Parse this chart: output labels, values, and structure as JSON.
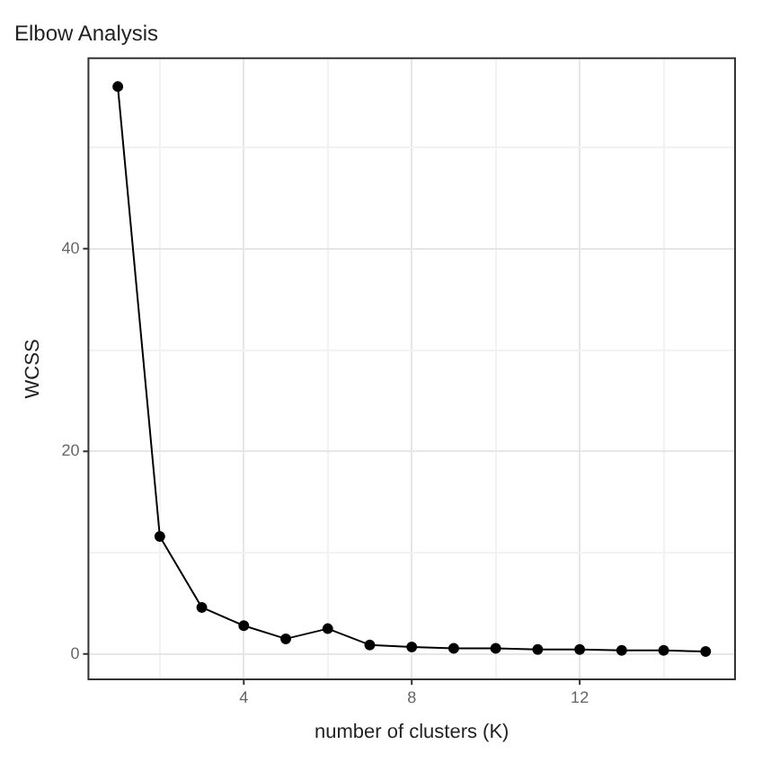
{
  "chart_data": {
    "type": "line",
    "title": "Elbow Analysis",
    "xlabel": "number of clusters (K)",
    "ylabel": "WCSS",
    "x": [
      1,
      2,
      3,
      4,
      5,
      6,
      7,
      8,
      9,
      10,
      11,
      12,
      13,
      14,
      15
    ],
    "series": [
      {
        "color": "#000000",
        "values": [
          56,
          11.6,
          4.6,
          2.8,
          1.5,
          2.5,
          0.9,
          0.7,
          0.55,
          0.55,
          0.45,
          0.45,
          0.35,
          0.35,
          0.25
        ]
      }
    ],
    "xlim": [
      0.3,
      15.7
    ],
    "xticks": [
      {
        "value": 2,
        "label": null
      },
      4,
      {
        "value": 6,
        "label": null
      },
      8,
      {
        "value": 10,
        "label": null
      },
      12,
      {
        "value": 14,
        "label": null
      }
    ],
    "ylim": [
      -2.5,
      58.8
    ],
    "yticks": [
      0,
      {
        "value": 10,
        "label": null
      },
      20,
      {
        "value": 30,
        "label": null
      },
      40,
      {
        "value": 50,
        "label": null
      }
    ],
    "grid": true,
    "marker": "circle",
    "line_style": "solid"
  }
}
